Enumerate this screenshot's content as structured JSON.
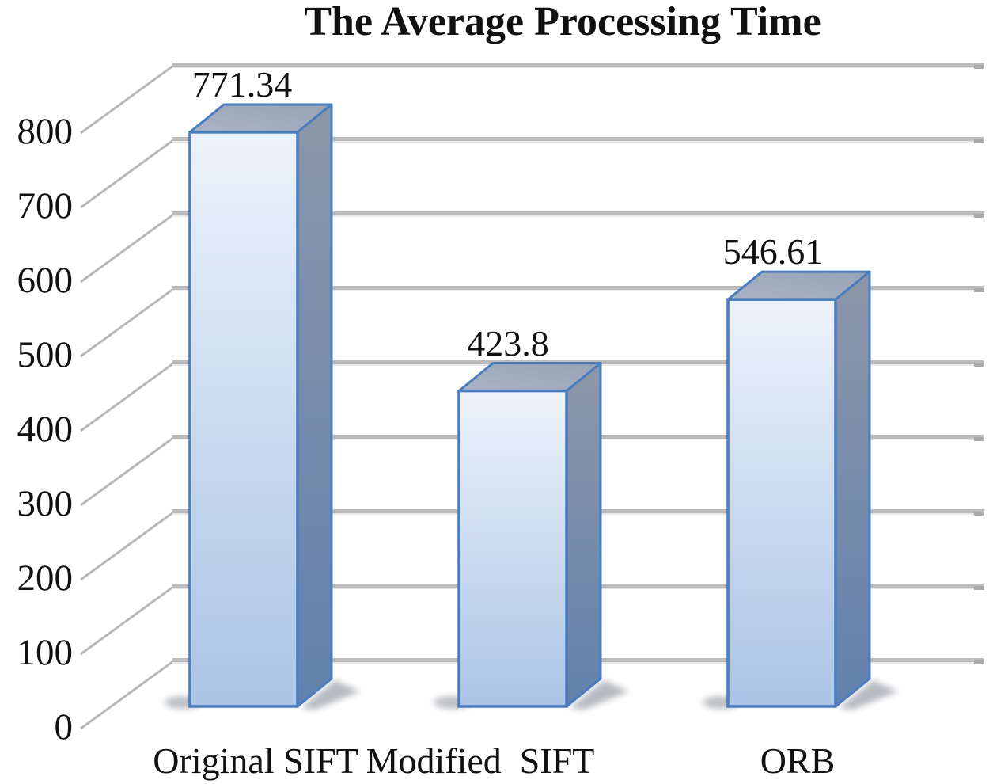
{
  "title": "The Average Processing Time",
  "chart_data": {
    "type": "bar",
    "style": "3d-column",
    "title": "The Average Processing Time",
    "categories": [
      "Original SIFT",
      "Modified  SIFT",
      "ORB"
    ],
    "values": [
      771.34,
      423.8,
      546.61
    ],
    "data_labels": [
      "771.34",
      "423.8",
      "546.61"
    ],
    "series": [
      {
        "name": "Average Processing Time",
        "values": [
          771.34,
          423.8,
          546.61
        ]
      }
    ],
    "xlabel": "",
    "ylabel": "",
    "ylim": [
      0,
      800
    ],
    "ytick_interval": 100,
    "yticks": [
      800,
      700,
      600,
      500,
      400,
      300,
      200,
      100,
      0
    ],
    "grid": true,
    "legend": false,
    "colors": {
      "bar_front_top": "#edf3fb",
      "bar_front_mid": "#cddcf0",
      "bar_front_bottom": "#abc4e5",
      "bar_border": "#4a7cbe",
      "bar_top_face_light": "#aab3c5",
      "bar_top_face_dark": "#98a3b6",
      "bar_side_top": "#8e97a9",
      "bar_side_bottom": "#6181ae",
      "gridline": "#bcbcbc",
      "gridline_highlight": "#e8e8e8",
      "depth_tick": "#b8b8b8",
      "shadow": "#7d828c",
      "text": "#111111",
      "background": "#ffffff"
    }
  }
}
